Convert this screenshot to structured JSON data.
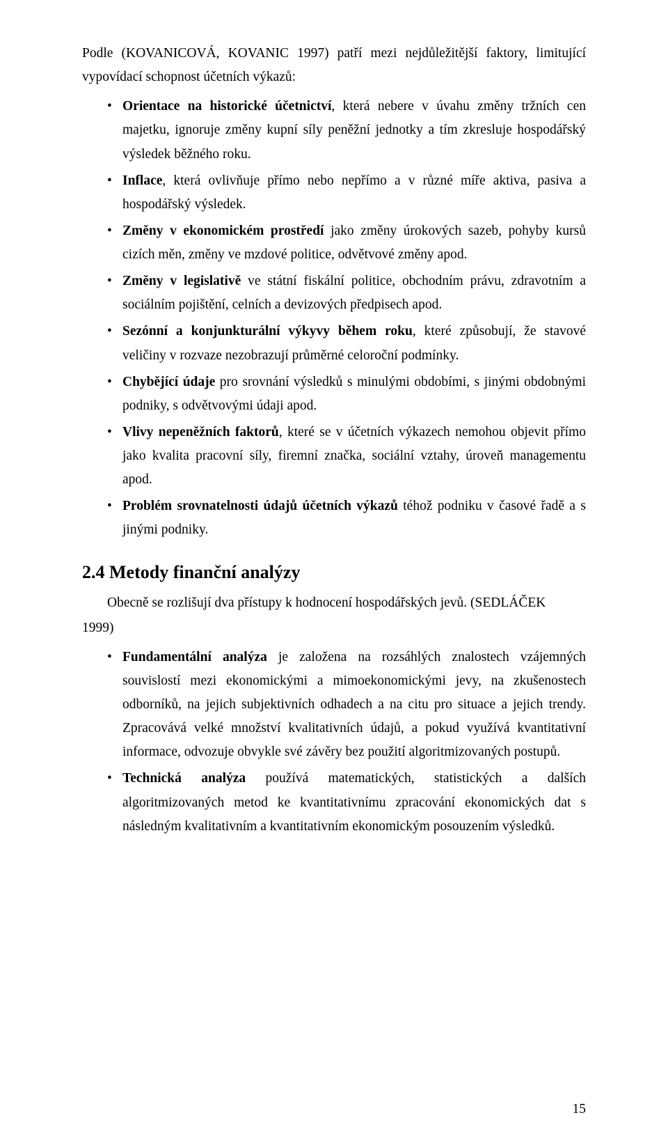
{
  "intro_line1": "Podle (KOVANICOVÁ, KOVANIC 1997) patří mezi nejdůležitější faktory,",
  "intro_line2": "limitující vypovídací schopnost účetních výkazů:",
  "bullets1": [
    {
      "bold": "Orientace na historické účetnictví",
      "rest": ", která nebere v úvahu změny tržních cen majetku, ignoruje změny kupní síly peněžní jednotky a tím zkresluje hospodářský výsledek běžného roku."
    },
    {
      "bold": "Inflace",
      "rest": ", která ovlivňuje přímo nebo nepřímo a v různé míře aktiva, pasiva a hospodářský výsledek."
    },
    {
      "bold": "Změny v ekonomickém prostředí",
      "rest": " jako změny úrokových sazeb, pohyby kursů cizích měn, změny ve mzdové politice, odvětvové změny apod."
    },
    {
      "bold": "Změny v legislativě",
      "rest": " ve státní fiskální politice, obchodním právu, zdravotním a sociálním pojištění, celních a devizových předpisech apod."
    },
    {
      "bold": "Sezónní a konjunkturální výkyvy během roku",
      "rest": ", které způsobují, že stavové veličiny v rozvaze nezobrazují průměrné celoroční podmínky."
    },
    {
      "bold": "Chybějící údaje",
      "rest": " pro srovnání výsledků s minulými obdobími, s jinými obdobnými podniky, s odvětvovými údaji apod."
    },
    {
      "bold": "Vlivy nepeněžních faktorů",
      "rest": ", které se v účetních výkazech nemohou objevit přímo jako kvalita pracovní síly, firemní značka, sociální vztahy, úroveň managementu apod."
    },
    {
      "bold": "Problém srovnatelnosti údajů účetních výkazů",
      "rest": " téhož podniku v časové řadě a s jinými podniky."
    }
  ],
  "section_heading": "2.4  Metody finanční analýzy",
  "section_intro": "Obecně se rozlišují dva přístupy k hodnocení hospodářských jevů. (SEDLÁČEK",
  "section_year": "1999)",
  "bullets2": [
    {
      "bold": "Fundamentální analýza",
      "rest": " je založena na rozsáhlých znalostech vzájemných souvislostí mezi ekonomickými a mimoekonomickými jevy, na zkušenostech odborníků, na jejich subjektivních odhadech a na citu pro situace a jejich trendy. Zpracovává velké množství kvalitativních údajů, a pokud využívá kvantitativní informace, odvozuje obvykle své závěry bez použití algoritmizovaných postupů."
    },
    {
      "bold": "Technická analýza",
      "rest": " používá matematických, statistických a dalších algoritmizovaných metod ke kvantitativnímu zpracování ekonomických dat s následným kvalitativním a kvantitativním ekonomickým posouzením výsledků."
    }
  ],
  "page_number": "15"
}
